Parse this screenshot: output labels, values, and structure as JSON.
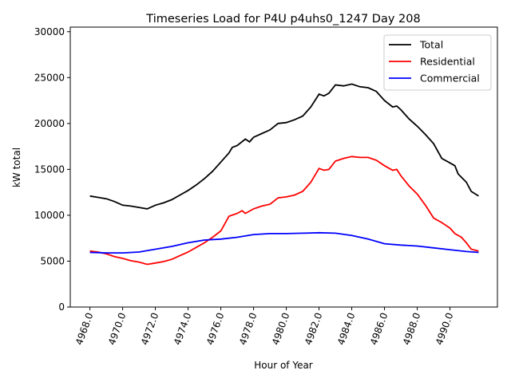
{
  "chart_data": {
    "type": "line",
    "title": "Timeseries Load for P4U p4uhs0_1247  Day 208",
    "xlabel": "Hour of Year",
    "ylabel": "kW total",
    "xlim": [
      4966.8,
      4992.9
    ],
    "ylim": [
      0,
      30500
    ],
    "xticks": [
      4968,
      4970,
      4972,
      4974,
      4976,
      4978,
      4980,
      4982,
      4984,
      4986,
      4988,
      4990
    ],
    "xtick_labels": [
      "4968.0",
      "4970.0",
      "4972.0",
      "4974.0",
      "4976.0",
      "4978.0",
      "4980.0",
      "4982.0",
      "4984.0",
      "4986.0",
      "4988.0",
      "4990.0"
    ],
    "yticks": [
      0,
      5000,
      10000,
      15000,
      20000,
      25000,
      30000
    ],
    "ytick_labels": [
      "0",
      "5000",
      "10000",
      "15000",
      "20000",
      "25000",
      "30000"
    ],
    "legend_position": "top-right",
    "series": [
      {
        "name": "Total",
        "color": "#000000",
        "points": [
          [
            4968,
            12100
          ],
          [
            4968.5,
            11950
          ],
          [
            4969,
            11800
          ],
          [
            4969.5,
            11500
          ],
          [
            4970,
            11100
          ],
          [
            4970.5,
            11000
          ],
          [
            4971,
            10850
          ],
          [
            4971.5,
            10700
          ],
          [
            4972,
            11100
          ],
          [
            4972.5,
            11350
          ],
          [
            4973,
            11700
          ],
          [
            4973.5,
            12200
          ],
          [
            4974,
            12700
          ],
          [
            4974.5,
            13300
          ],
          [
            4975,
            14000
          ],
          [
            4975.5,
            14800
          ],
          [
            4976,
            15800
          ],
          [
            4976.5,
            16800
          ],
          [
            4976.7,
            17400
          ],
          [
            4977,
            17600
          ],
          [
            4977.5,
            18300
          ],
          [
            4977.75,
            18000
          ],
          [
            4978,
            18500
          ],
          [
            4978.5,
            18900
          ],
          [
            4979,
            19300
          ],
          [
            4979.5,
            20000
          ],
          [
            4980,
            20100
          ],
          [
            4980.5,
            20400
          ],
          [
            4981,
            20800
          ],
          [
            4981.5,
            21800
          ],
          [
            4982,
            23200
          ],
          [
            4982.3,
            23000
          ],
          [
            4982.6,
            23300
          ],
          [
            4983,
            24200
          ],
          [
            4983.5,
            24100
          ],
          [
            4984,
            24300
          ],
          [
            4984.5,
            24000
          ],
          [
            4985,
            23900
          ],
          [
            4985.5,
            23500
          ],
          [
            4986,
            22500
          ],
          [
            4986.5,
            21800
          ],
          [
            4986.75,
            21900
          ],
          [
            4987,
            21500
          ],
          [
            4987.5,
            20500
          ],
          [
            4988,
            19700
          ],
          [
            4988.5,
            18800
          ],
          [
            4989,
            17800
          ],
          [
            4989.5,
            16200
          ],
          [
            4990,
            15700
          ],
          [
            4990.3,
            15400
          ],
          [
            4990.5,
            14500
          ],
          [
            4991,
            13600
          ],
          [
            4991.3,
            12600
          ],
          [
            4991.75,
            12100
          ]
        ]
      },
      {
        "name": "Residential",
        "color": "#ff0000",
        "points": [
          [
            4968,
            6100
          ],
          [
            4968.5,
            6000
          ],
          [
            4969,
            5800
          ],
          [
            4969.5,
            5500
          ],
          [
            4970,
            5300
          ],
          [
            4970.5,
            5050
          ],
          [
            4971,
            4900
          ],
          [
            4971.5,
            4650
          ],
          [
            4972,
            4800
          ],
          [
            4972.5,
            4950
          ],
          [
            4973,
            5200
          ],
          [
            4973.5,
            5600
          ],
          [
            4974,
            6000
          ],
          [
            4974.5,
            6500
          ],
          [
            4975,
            7000
          ],
          [
            4975.5,
            7600
          ],
          [
            4976,
            8300
          ],
          [
            4976.5,
            9900
          ],
          [
            4977,
            10200
          ],
          [
            4977.3,
            10500
          ],
          [
            4977.5,
            10200
          ],
          [
            4978,
            10700
          ],
          [
            4978.5,
            11000
          ],
          [
            4979,
            11200
          ],
          [
            4979.5,
            11900
          ],
          [
            4980,
            12000
          ],
          [
            4980.5,
            12200
          ],
          [
            4981,
            12600
          ],
          [
            4981.5,
            13600
          ],
          [
            4982,
            15100
          ],
          [
            4982.3,
            14900
          ],
          [
            4982.6,
            15000
          ],
          [
            4983,
            15900
          ],
          [
            4983.5,
            16200
          ],
          [
            4984,
            16400
          ],
          [
            4984.5,
            16300
          ],
          [
            4985,
            16300
          ],
          [
            4985.5,
            16000
          ],
          [
            4986,
            15400
          ],
          [
            4986.5,
            14900
          ],
          [
            4986.75,
            15000
          ],
          [
            4987,
            14300
          ],
          [
            4987.5,
            13200
          ],
          [
            4988,
            12300
          ],
          [
            4988.5,
            11100
          ],
          [
            4989,
            9700
          ],
          [
            4989.5,
            9200
          ],
          [
            4990,
            8600
          ],
          [
            4990.3,
            8000
          ],
          [
            4990.7,
            7600
          ],
          [
            4991,
            7000
          ],
          [
            4991.3,
            6300
          ],
          [
            4991.75,
            6100
          ]
        ]
      },
      {
        "name": "Commercial",
        "color": "#0000ff",
        "points": [
          [
            4968,
            5950
          ],
          [
            4969,
            5900
          ],
          [
            4970,
            5900
          ],
          [
            4971,
            6000
          ],
          [
            4972,
            6300
          ],
          [
            4973,
            6600
          ],
          [
            4974,
            7000
          ],
          [
            4975,
            7300
          ],
          [
            4976,
            7400
          ],
          [
            4977,
            7600
          ],
          [
            4978,
            7900
          ],
          [
            4979,
            8000
          ],
          [
            4980,
            8000
          ],
          [
            4981,
            8050
          ],
          [
            4982,
            8100
          ],
          [
            4983,
            8050
          ],
          [
            4984,
            7800
          ],
          [
            4985,
            7400
          ],
          [
            4986,
            6900
          ],
          [
            4987,
            6750
          ],
          [
            4988,
            6650
          ],
          [
            4989,
            6450
          ],
          [
            4990,
            6250
          ],
          [
            4991,
            6050
          ],
          [
            4991.75,
            5950
          ]
        ]
      }
    ]
  }
}
